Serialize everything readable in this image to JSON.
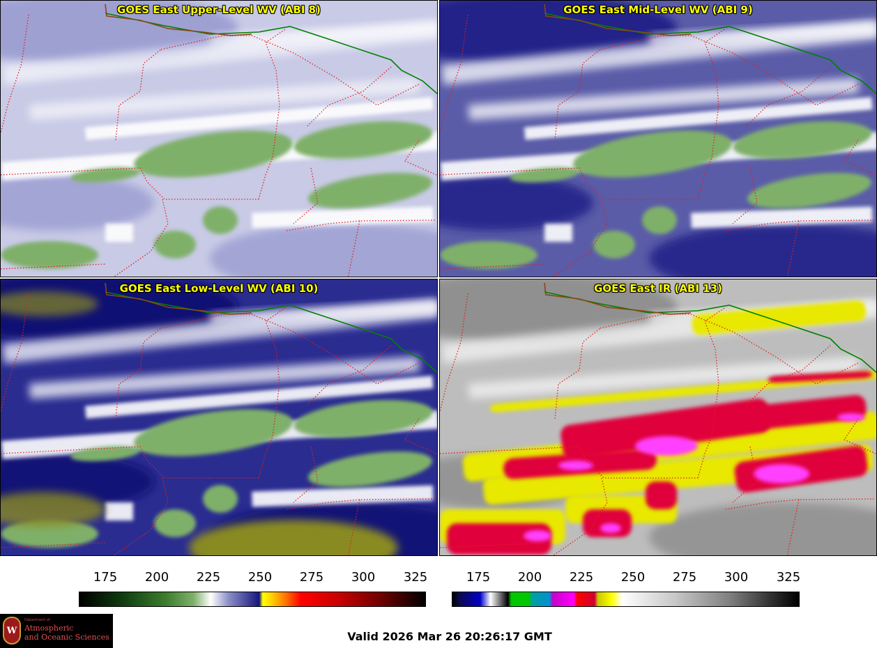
{
  "panels": [
    {
      "id": "upper-wv",
      "title": "GOES East Upper-Level WV (ABI 8)",
      "colors": {
        "bg": "#c8cae6",
        "bg_dark": "#9a9cd0",
        "cloud": "#ffffff",
        "moist": "#7fb06a"
      }
    },
    {
      "id": "mid-wv",
      "title": "GOES East Mid-Level WV (ABI 9)",
      "colors": {
        "bg": "#5a5ca8",
        "bg_dark": "#1c1c86",
        "cloud": "#ffffff",
        "moist": "#7fb06a"
      }
    },
    {
      "id": "low-wv",
      "title": "GOES East Low-Level WV (ABI 10)",
      "colors": {
        "bg": "#2a2c90",
        "bg_dark": "#0a0a70",
        "cloud": "#ffffff",
        "moist": "#7fb06a",
        "warm": "#8a8a20"
      }
    },
    {
      "id": "ir",
      "title": "GOES East IR (ABI 13)",
      "colors": {
        "bg": "#bdbdbd",
        "bg_dark": "#8c8c8c",
        "cloud": "#f0f0f0",
        "yellow": "#e8e800",
        "red": "#e0003a",
        "magenta": "#ff40ff"
      }
    }
  ],
  "colorbars": [
    {
      "id": "wv-scale",
      "ticks": [
        "175",
        "200",
        "225",
        "250",
        "275",
        "300",
        "325"
      ]
    },
    {
      "id": "ir-scale",
      "ticks": [
        "175",
        "200",
        "225",
        "250",
        "275",
        "300",
        "325"
      ]
    }
  ],
  "footer": {
    "valid_time": "Valid 2026 Mar 26 20:26:17 GMT",
    "logo": {
      "seal_letter": "W",
      "dept": "Department of",
      "name_line1": "Atmospheric",
      "name_line2": "and Oceanic Sciences"
    }
  },
  "map_colors": {
    "state_border": "#e02020",
    "country_border": "#008000",
    "coast": "#8b4513"
  }
}
